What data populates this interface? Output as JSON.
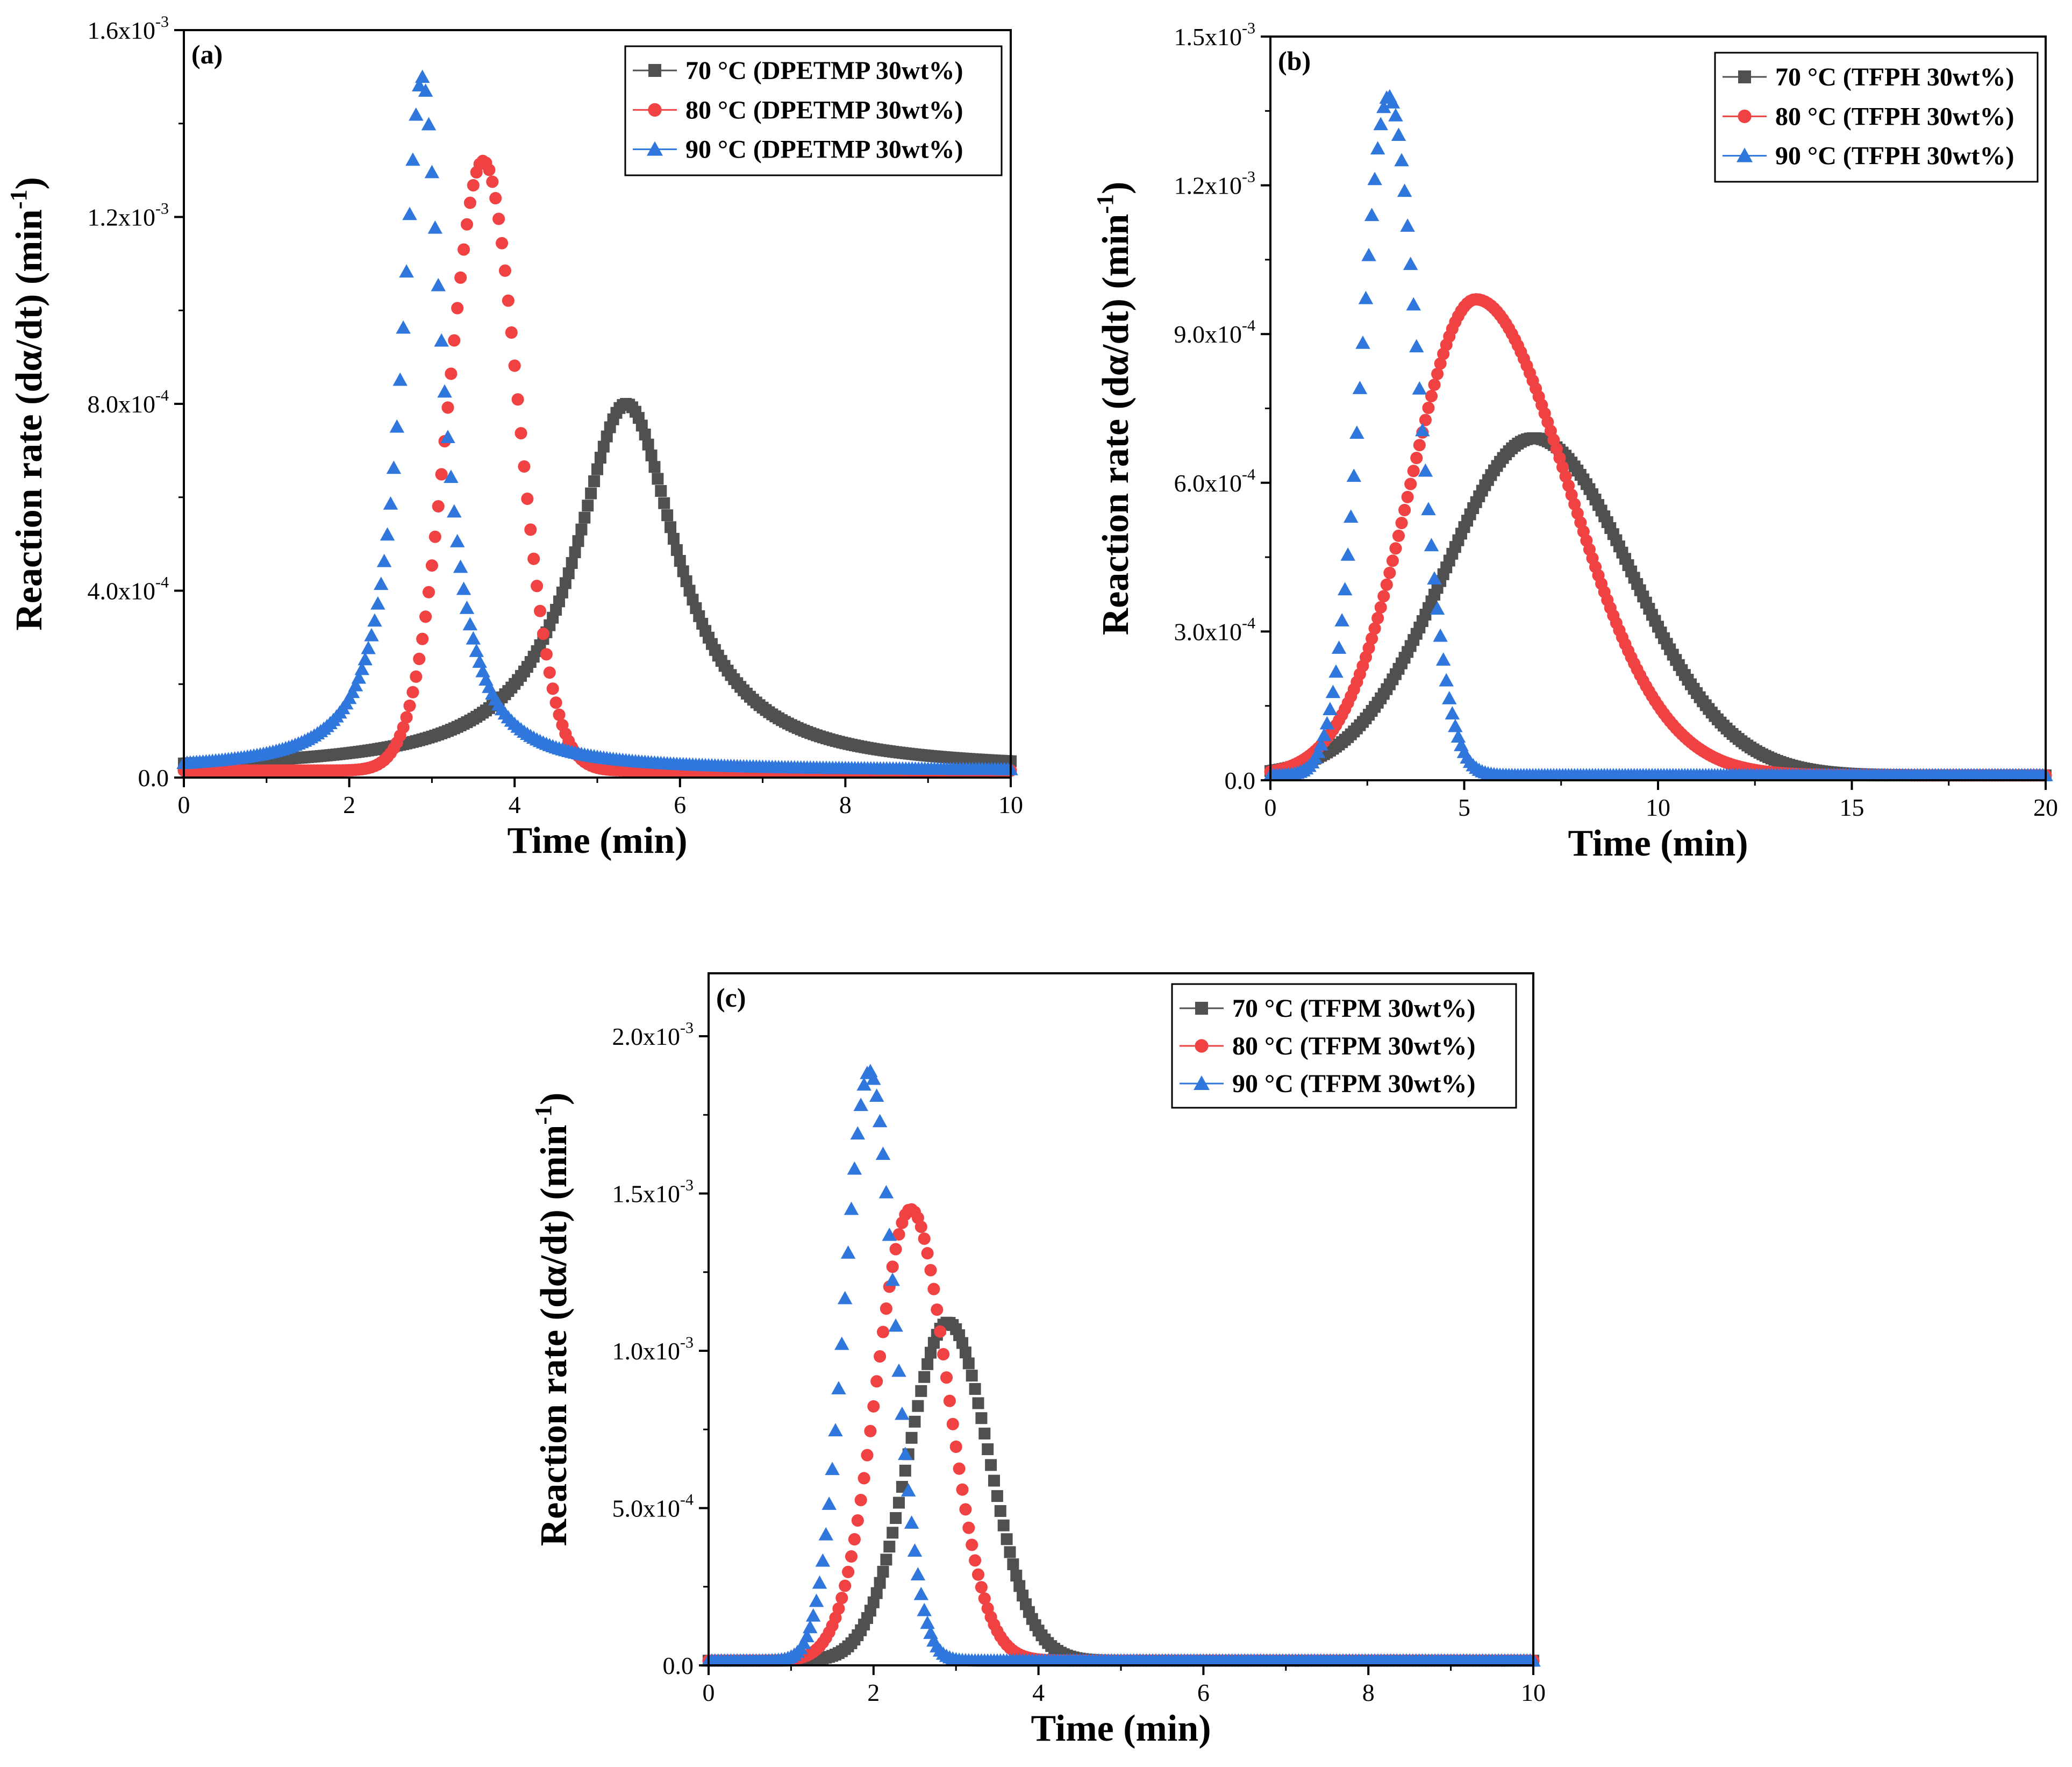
{
  "figure": {
    "colors": {
      "70": "#505050",
      "80": "#f04242",
      "90": "#2f77dd"
    },
    "panels": [
      {
        "id": "a",
        "label": "(a)",
        "compound": "DPETMP",
        "xmax": 10,
        "ymax_exp": 3
      },
      {
        "id": "b",
        "label": "(b)",
        "compound": "TFPH",
        "xmax": 20,
        "ymax_exp": 3
      },
      {
        "id": "c",
        "label": "(c)",
        "compound": "TFPM",
        "xmax": 10,
        "ymax_exp": 3
      }
    ]
  },
  "chart_data": [
    {
      "type": "scatter",
      "panel": "(a)",
      "title": "",
      "xlabel": "Time (min)",
      "ylabel": "Reaction rate (dα/dt) (min-1)",
      "xlim": [
        0,
        10
      ],
      "ylim": [
        0,
        0.0016
      ],
      "xticks": [
        0,
        2,
        4,
        6,
        8,
        10
      ],
      "xtick_labels": [
        "0",
        "2",
        "4",
        "6",
        "8",
        "10"
      ],
      "yticks": [
        0,
        0.0004,
        0.0008,
        0.0012,
        0.0016
      ],
      "ytick_labels": [
        {
          "base": "0.0",
          "exp": ""
        },
        {
          "base": "4.0x10",
          "exp": "-4"
        },
        {
          "base": "8.0x10",
          "exp": "-4"
        },
        {
          "base": "1.2x10",
          "exp": "-3"
        },
        {
          "base": "1.6x10",
          "exp": "-3"
        }
      ],
      "legend_position": "top-right",
      "series": [
        {
          "name": "70 °C (DPETMP 30wt%)",
          "marker": "square",
          "color": "#505050",
          "peak_x": 5.35,
          "peak_y": 0.0008,
          "baseline": 1.5e-05,
          "width_left": 0.95,
          "width_right": 0.95,
          "shape": "lorentz"
        },
        {
          "name": "80 °C (DPETMP 30wt%)",
          "marker": "circle",
          "color": "#f04242",
          "peak_x": 3.62,
          "peak_y": 0.00132,
          "baseline": 1.5e-05,
          "width_left": 0.42,
          "width_right": 0.42,
          "shape": "gauss"
        },
        {
          "name": "90 °C (DPETMP 30wt%)",
          "marker": "triangle",
          "color": "#2f77dd",
          "peak_x": 2.88,
          "peak_y": 0.0015,
          "baseline": 1.5e-05,
          "width_left": 0.38,
          "width_right": 0.38,
          "shape": "lorentz"
        }
      ]
    },
    {
      "type": "scatter",
      "panel": "(b)",
      "title": "",
      "xlabel": "Time (min)",
      "ylabel": "Reaction rate (dα/dt) (min-1)",
      "xlim": [
        0,
        20
      ],
      "ylim": [
        0,
        0.0015
      ],
      "xticks": [
        0,
        5,
        10,
        15,
        20
      ],
      "xtick_labels": [
        "0",
        "5",
        "10",
        "15",
        "20"
      ],
      "yticks": [
        0,
        0.0003,
        0.0006,
        0.0009,
        0.0012,
        0.0015
      ],
      "ytick_labels": [
        {
          "base": "0.0",
          "exp": ""
        },
        {
          "base": "3.0x10",
          "exp": "-4"
        },
        {
          "base": "6.0x10",
          "exp": "-4"
        },
        {
          "base": "9.0x10",
          "exp": "-4"
        },
        {
          "base": "1.2x10",
          "exp": "-3"
        },
        {
          "base": "1.5x10",
          "exp": "-3"
        }
      ],
      "legend_position": "top-right",
      "series": [
        {
          "name": "70 °C (TFPH 30wt%)",
          "marker": "square",
          "color": "#505050",
          "peak_x": 6.8,
          "peak_y": 0.00069,
          "baseline": 1e-05,
          "width_left": 2.3,
          "width_right": 2.5,
          "shape": "gauss"
        },
        {
          "name": "80 °C (TFPH 30wt%)",
          "marker": "circle",
          "color": "#f04242",
          "peak_x": 5.3,
          "peak_y": 0.00097,
          "baseline": 1e-05,
          "width_left": 1.7,
          "width_right": 2.4,
          "shape": "gauss"
        },
        {
          "name": "90 °C (TFPH 30wt%)",
          "marker": "triangle",
          "color": "#2f77dd",
          "peak_x": 3.05,
          "peak_y": 0.00138,
          "baseline": 1e-05,
          "width_left": 0.7,
          "width_right": 0.75,
          "shape": "gauss"
        }
      ]
    },
    {
      "type": "scatter",
      "panel": "(c)",
      "title": "",
      "xlabel": "Time (min)",
      "ylabel": "Reaction rate (dα/dt) (min-1)",
      "xlim": [
        0,
        10
      ],
      "ylim": [
        0,
        0.0022
      ],
      "xticks": [
        0,
        2,
        4,
        6,
        8,
        10
      ],
      "xtick_labels": [
        "0",
        "2",
        "4",
        "6",
        "8",
        "10"
      ],
      "yticks": [
        0,
        0.0005,
        0.001,
        0.0015,
        0.002
      ],
      "ytick_labels": [
        {
          "base": "0.0",
          "exp": ""
        },
        {
          "base": "5.0x10",
          "exp": "-4"
        },
        {
          "base": "1.0x10",
          "exp": "-3"
        },
        {
          "base": "1.5x10",
          "exp": "-3"
        },
        {
          "base": "2.0x10",
          "exp": "-3"
        }
      ],
      "legend_position": "top-right",
      "series": [
        {
          "name": "70 °C (TFPM 30wt%)",
          "marker": "square",
          "color": "#505050",
          "peak_x": 2.9,
          "peak_y": 0.00109,
          "baseline": 1.5e-05,
          "width_left": 0.48,
          "width_right": 0.5,
          "shape": "gauss"
        },
        {
          "name": "80 °C (TFPM 30wt%)",
          "marker": "circle",
          "color": "#f04242",
          "peak_x": 2.45,
          "peak_y": 0.00145,
          "baseline": 1.5e-05,
          "width_left": 0.42,
          "width_right": 0.45,
          "shape": "gauss"
        },
        {
          "name": "90 °C (TFPM 30wt%)",
          "marker": "triangle",
          "color": "#2f77dd",
          "peak_x": 1.95,
          "peak_y": 0.00189,
          "baseline": 1.5e-05,
          "width_left": 0.3,
          "width_right": 0.3,
          "shape": "gauss"
        }
      ]
    }
  ]
}
